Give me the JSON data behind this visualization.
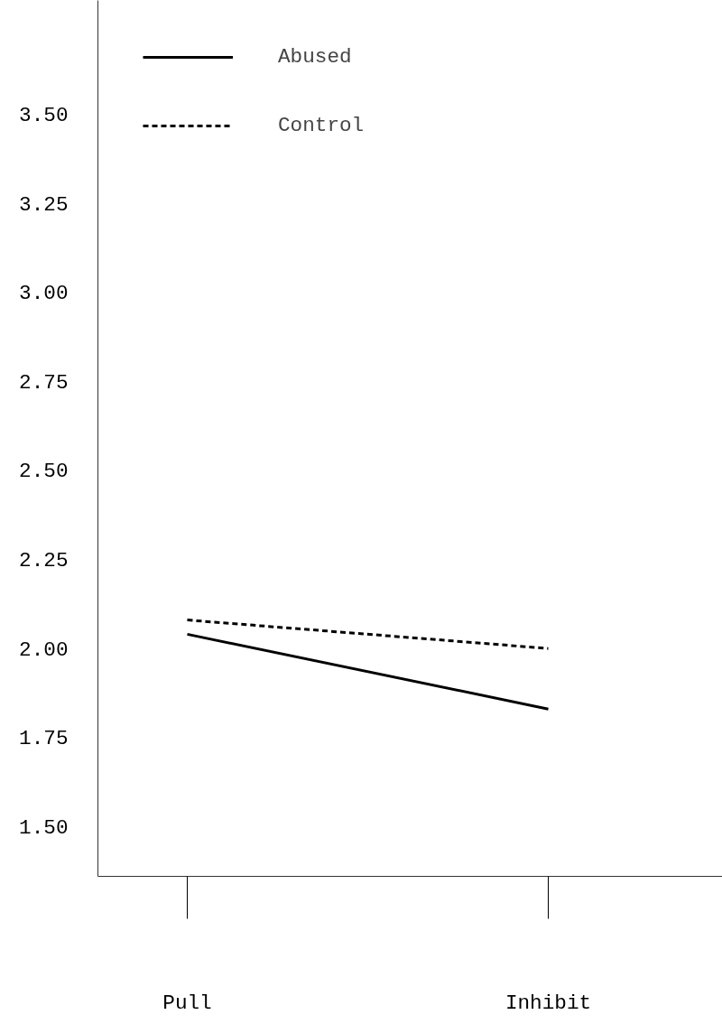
{
  "chart_data": {
    "type": "line",
    "categories": [
      "Pull",
      "Inhibit"
    ],
    "series": [
      {
        "name": "Abused",
        "color": "#000000",
        "line_style": "solid",
        "values": [
          2.04,
          1.83
        ]
      },
      {
        "name": "Control",
        "color": "#000000",
        "line_style": "dashed",
        "values": [
          2.08,
          2.0
        ]
      }
    ],
    "ylim": [
      1.36,
      3.82
    ],
    "yticks": [
      {
        "value": 1.5,
        "label": "1.50"
      },
      {
        "value": 1.75,
        "label": "1.75"
      },
      {
        "value": 2.0,
        "label": "2.00"
      },
      {
        "value": 2.25,
        "label": "2.25"
      },
      {
        "value": 2.5,
        "label": "2.50"
      },
      {
        "value": 2.75,
        "label": "2.75"
      },
      {
        "value": 3.0,
        "label": "3.00"
      },
      {
        "value": 3.25,
        "label": "3.25"
      },
      {
        "value": 3.5,
        "label": "3.50"
      }
    ],
    "legend": "top left",
    "grid": false,
    "marker": "none"
  }
}
